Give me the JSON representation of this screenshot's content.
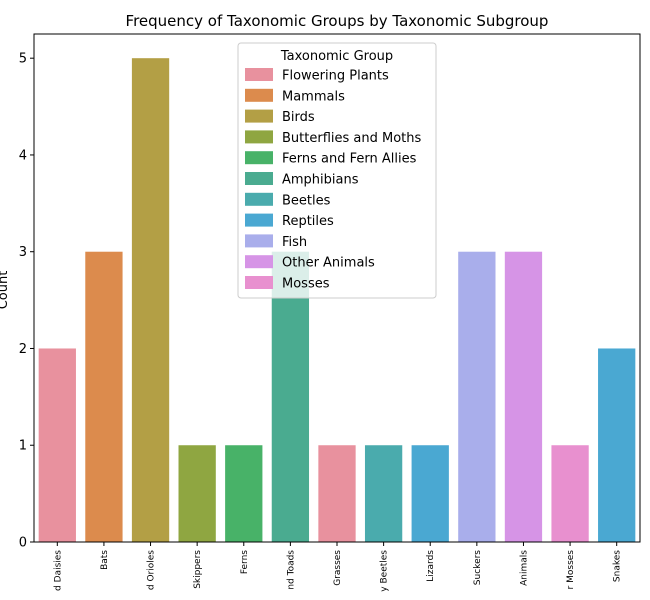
{
  "chart_data": {
    "type": "bar",
    "title": "Frequency of Taxonomic Groups by Taxonomic Subgroup",
    "xlabel": "",
    "ylabel": "Count",
    "ylim": [
      0,
      5.25
    ],
    "yticks": [
      0,
      1,
      2,
      3,
      4,
      5
    ],
    "grid": false,
    "legend_position": "top-center",
    "legend_title": "Taxonomic Group",
    "categories": [
      "d Daisies",
      "Bats",
      "d Orioles",
      "Skippers",
      "Ferns",
      "nd Toads",
      "Grasses",
      "y Beetles",
      "Lizards",
      "Suckers",
      "Animals",
      "r Mosses",
      "Snakes"
    ],
    "values": [
      2,
      3,
      5,
      1,
      1,
      3,
      1,
      1,
      1,
      3,
      3,
      1,
      2
    ],
    "bar_groups": [
      "Flowering Plants",
      "Mammals",
      "Birds",
      "Butterflies and Moths",
      "Ferns and Fern Allies",
      "Amphibians",
      "Flowering Plants",
      "Beetles",
      "Reptiles",
      "Fish",
      "Other Animals",
      "Mosses",
      "Reptiles"
    ],
    "groups": [
      {
        "name": "Flowering Plants",
        "color": "#e8919e"
      },
      {
        "name": "Mammals",
        "color": "#dc8b4d"
      },
      {
        "name": "Birds",
        "color": "#b39f45"
      },
      {
        "name": "Butterflies and Moths",
        "color": "#8fa641"
      },
      {
        "name": "Ferns and Fern Allies",
        "color": "#48b268"
      },
      {
        "name": "Amphibians",
        "color": "#4aab90"
      },
      {
        "name": "Beetles",
        "color": "#4aabad"
      },
      {
        "name": "Reptiles",
        "color": "#4aa8d2"
      },
      {
        "name": "Fish",
        "color": "#a9aeeb"
      },
      {
        "name": "Other Animals",
        "color": "#d694e6"
      },
      {
        "name": "Mosses",
        "color": "#e890cf"
      }
    ]
  }
}
